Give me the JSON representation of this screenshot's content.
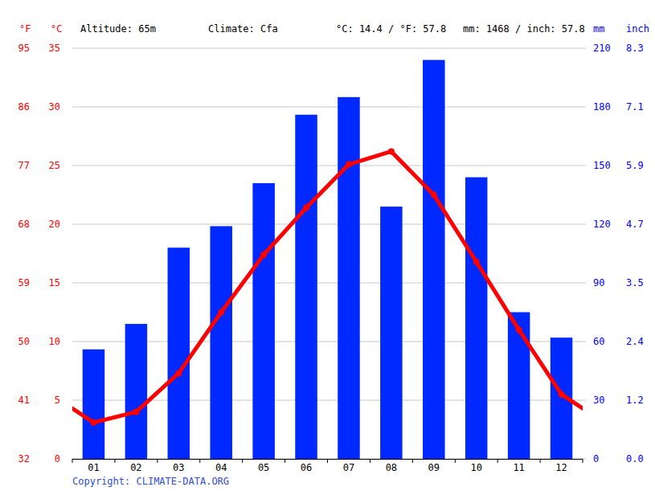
{
  "chart_data": {
    "type": "combo",
    "annotations": [
      "Altitude: 65m",
      "Climate: Cfa",
      "°C: 14.4 / °F: 57.8",
      "mm: 1468 / inch: 57.8"
    ],
    "credit": "Copyright: CLIMATE-DATA.ORG",
    "ylabel": "°C",
    "ylabel_alt": "°F",
    "y2label": "mm",
    "y2label_alt": "inch",
    "categories": [
      "01",
      "02",
      "03",
      "04",
      "05",
      "06",
      "07",
      "08",
      "09",
      "10",
      "11",
      "12"
    ],
    "series": [
      {
        "type": "bar",
        "axis": "y2",
        "color": "#0029ff",
        "values": [
          56,
          69,
          108,
          119,
          141,
          176,
          185,
          129,
          204,
          144,
          75,
          62
        ]
      },
      {
        "type": "line",
        "color": "#ff0000",
        "marker": "circle",
        "values": [
          3.1,
          4.0,
          7.3,
          12.5,
          17.4,
          21.4,
          25.1,
          26.2,
          22.5,
          16.8,
          11.0,
          5.5
        ]
      }
    ],
    "ylim": [
      0,
      35
    ],
    "yticks": [
      0,
      5,
      10,
      15,
      20,
      25,
      30,
      35
    ],
    "yticks_alt": [
      {
        "value": 0,
        "label": "32"
      },
      {
        "value": 5,
        "label": "41"
      },
      {
        "value": 10,
        "label": "50"
      },
      {
        "value": 15,
        "label": "59"
      },
      {
        "value": 20,
        "label": "68"
      },
      {
        "value": 25,
        "label": "77"
      },
      {
        "value": 30,
        "label": "86"
      },
      {
        "value": 35,
        "label": "95"
      }
    ],
    "y2lim": [
      0,
      210
    ],
    "y2ticks": [
      0,
      30,
      60,
      90,
      120,
      150,
      180,
      210
    ],
    "y2ticks_alt": [
      {
        "value": 0,
        "label": "0.0"
      },
      {
        "value": 30,
        "label": "1.2"
      },
      {
        "value": 60,
        "label": "2.4"
      },
      {
        "value": 90,
        "label": "3.5"
      },
      {
        "value": 120,
        "label": "4.7"
      },
      {
        "value": 150,
        "label": "5.9"
      },
      {
        "value": 180,
        "label": "7.1"
      },
      {
        "value": 210,
        "label": "8.3"
      }
    ],
    "grid": true
  }
}
